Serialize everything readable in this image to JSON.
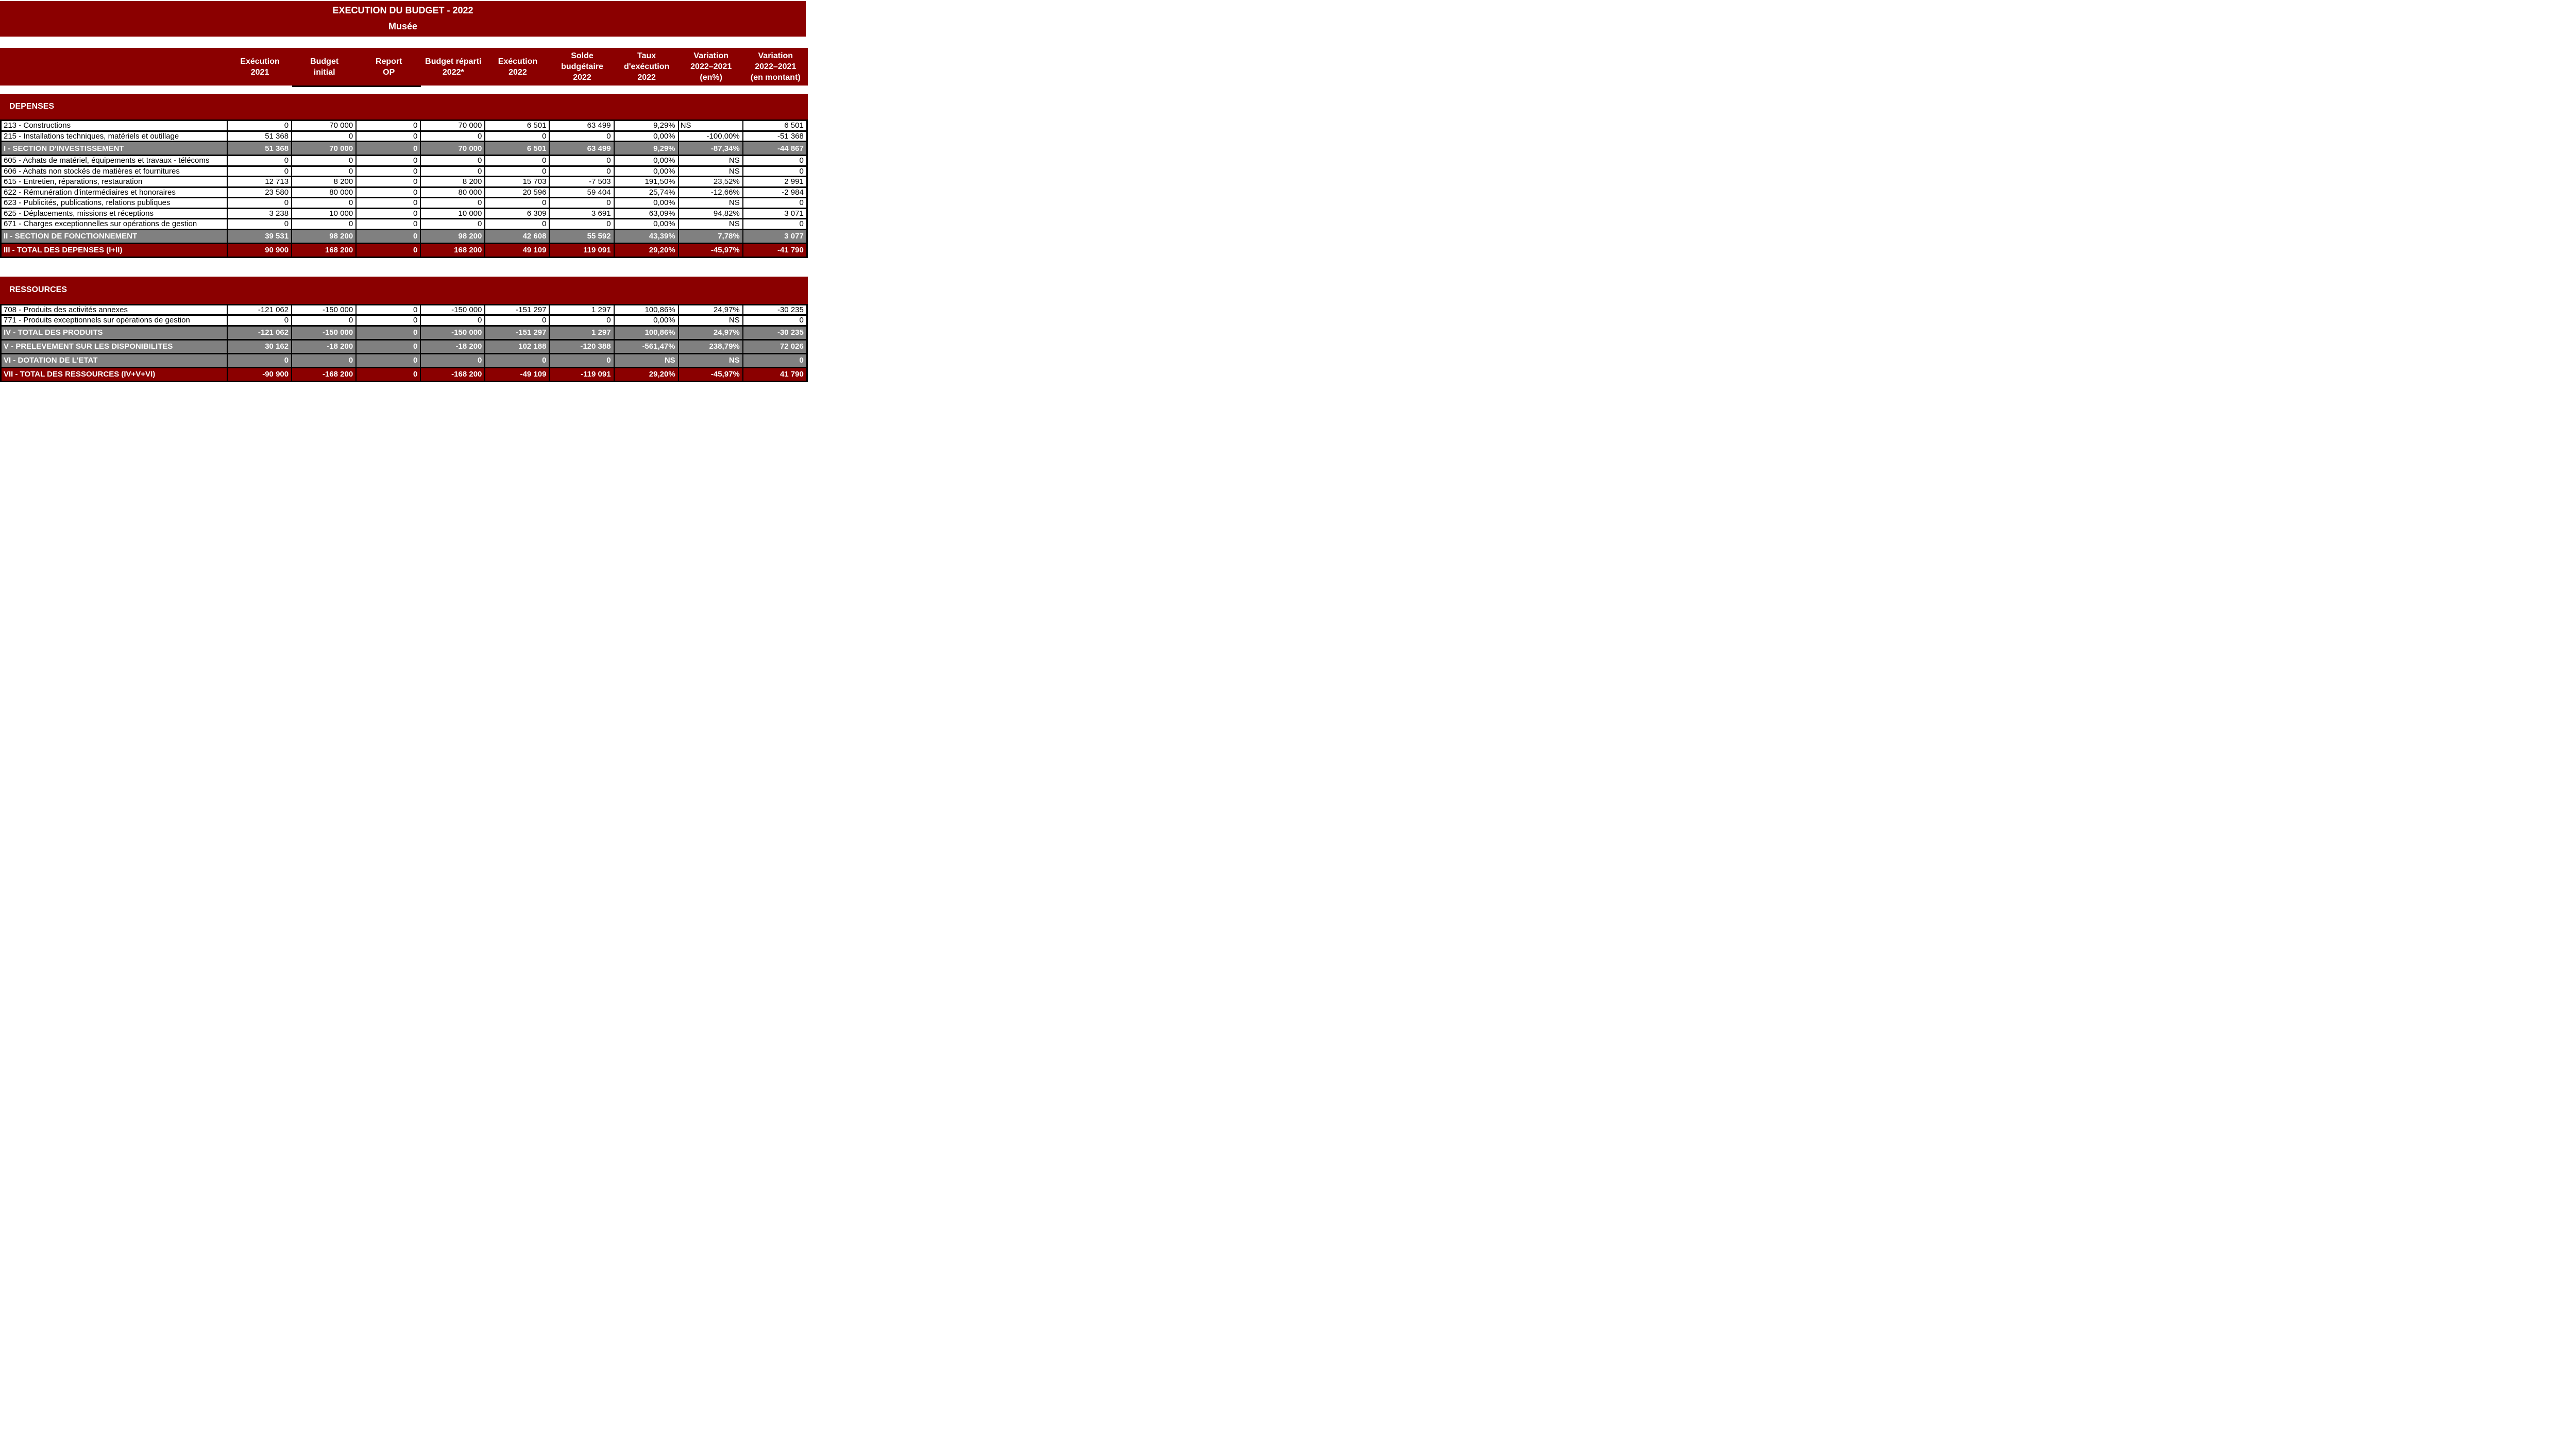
{
  "title": {
    "line1": "EXECUTION DU BUDGET - 2022",
    "line2": "Musée"
  },
  "colors": {
    "brand_dark_red": "#8b0000",
    "subtotal_gray": "#808080",
    "grid_black": "#000000",
    "text_on_dark": "#ffffff"
  },
  "columns": [
    {
      "id": "execution-2021",
      "lines": [
        "Exécution",
        "2021"
      ],
      "underline": false
    },
    {
      "id": "budget-initial",
      "lines": [
        "Budget",
        "initial"
      ],
      "underline": true
    },
    {
      "id": "report-op",
      "lines": [
        "Report",
        "OP"
      ],
      "underline": true
    },
    {
      "id": "budget-reparti-2022",
      "lines": [
        "Budget réparti",
        "2022*"
      ],
      "underline": false
    },
    {
      "id": "execution-2022",
      "lines": [
        "Exécution",
        "2022"
      ],
      "underline": false
    },
    {
      "id": "solde-budgetaire-2022",
      "lines": [
        "Solde",
        "budgétaire",
        "2022"
      ],
      "underline": false
    },
    {
      "id": "taux-execution-2022",
      "lines": [
        "Taux",
        "d'exécution",
        "2022"
      ],
      "underline": false
    },
    {
      "id": "variation-2022-2021-pct",
      "lines": [
        "Variation",
        "2022–2021",
        "(en%)"
      ],
      "underline": false
    },
    {
      "id": "variation-2022-2021-montant",
      "lines": [
        "Variation",
        "2022–2021",
        "(en montant)"
      ],
      "underline": false
    }
  ],
  "sections": [
    {
      "header": "DEPENSES",
      "rows": [
        {
          "label": "213 - Constructions",
          "type": "normal",
          "values": [
            "0",
            "70 000",
            "0",
            "70 000",
            "6 501",
            "63 499",
            "9,29%",
            "NS",
            "6 501"
          ],
          "align_left": [
            7
          ]
        },
        {
          "label": "215 - Installations techniques, matériels et outillage",
          "type": "normal",
          "values": [
            "51 368",
            "0",
            "0",
            "0",
            "0",
            "0",
            "0,00%",
            "-100,00%",
            "-51 368"
          ]
        },
        {
          "label": "I - SECTION D'INVESTISSEMENT",
          "type": "subtotal",
          "values": [
            "51 368",
            "70 000",
            "0",
            "70 000",
            "6 501",
            "63 499",
            "9,29%",
            "-87,34%",
            "-44 867"
          ]
        },
        {
          "label": "605 - Achats de matériel, équipements et travaux - télécoms",
          "type": "normal",
          "values": [
            "0",
            "0",
            "0",
            "0",
            "0",
            "0",
            "0,00%",
            "NS",
            "0"
          ]
        },
        {
          "label": "606 - Achats non stockés de matières et fournitures",
          "type": "normal",
          "values": [
            "0",
            "0",
            "0",
            "0",
            "0",
            "0",
            "0,00%",
            "NS",
            "0"
          ]
        },
        {
          "label": "615 - Entretien, réparations, restauration",
          "type": "normal",
          "values": [
            "12 713",
            "8 200",
            "0",
            "8 200",
            "15 703",
            "-7 503",
            "191,50%",
            "23,52%",
            "2 991"
          ]
        },
        {
          "label": "622 - Rémunération d'intermédiaires et honoraires",
          "type": "normal",
          "values": [
            "23 580",
            "80 000",
            "0",
            "80 000",
            "20 596",
            "59 404",
            "25,74%",
            "-12,66%",
            "-2 984"
          ]
        },
        {
          "label": "623 - Publicités, publications, relations publiques",
          "type": "normal",
          "values": [
            "0",
            "0",
            "0",
            "0",
            "0",
            "0",
            "0,00%",
            "NS",
            "0"
          ]
        },
        {
          "label": "625 - Déplacements, missions et réceptions",
          "type": "normal",
          "values": [
            "3 238",
            "10 000",
            "0",
            "10 000",
            "6 309",
            "3 691",
            "63,09%",
            "94,82%",
            "3 071"
          ]
        },
        {
          "label": "671 - Charges exceptionnelles sur opérations de gestion",
          "type": "normal",
          "values": [
            "0",
            "0",
            "0",
            "0",
            "0",
            "0",
            "0,00%",
            "NS",
            "0"
          ]
        },
        {
          "label": "II - SECTION DE FONCTIONNEMENT",
          "type": "subtotal",
          "values": [
            "39 531",
            "98 200",
            "0",
            "98 200",
            "42 608",
            "55 592",
            "43,39%",
            "7,78%",
            "3 077"
          ]
        },
        {
          "label": "III - TOTAL DES DEPENSES (I+II)",
          "type": "total",
          "values": [
            "90 900",
            "168 200",
            "0",
            "168 200",
            "49 109",
            "119 091",
            "29,20%",
            "-45,97%",
            "-41 790"
          ]
        }
      ]
    },
    {
      "header": "RESSOURCES",
      "rows": [
        {
          "label": "708 - Produits des activités annexes",
          "type": "normal",
          "values": [
            "-121 062",
            "-150 000",
            "0",
            "-150 000",
            "-151 297",
            "1 297",
            "100,86%",
            "24,97%",
            "-30 235"
          ]
        },
        {
          "label": "771 - Produits exceptionnels sur opérations de gestion",
          "type": "normal",
          "values": [
            "0",
            "0",
            "0",
            "0",
            "0",
            "0",
            "0,00%",
            "NS",
            "0"
          ]
        },
        {
          "label": "IV - TOTAL DES PRODUITS",
          "type": "subtotal",
          "values": [
            "-121 062",
            "-150 000",
            "0",
            "-150 000",
            "-151 297",
            "1 297",
            "100,86%",
            "24,97%",
            "-30 235"
          ]
        },
        {
          "label": "V - PRELEVEMENT SUR LES DISPONIBILITES",
          "type": "subtotal",
          "values": [
            "30 162",
            "-18 200",
            "0",
            "-18 200",
            "102 188",
            "-120 388",
            "-561,47%",
            "238,79%",
            "72 026"
          ]
        },
        {
          "label": "VI - DOTATION DE L'ETAT",
          "type": "subtotal",
          "values": [
            "0",
            "0",
            "0",
            "0",
            "0",
            "0",
            "NS",
            "NS",
            "0"
          ]
        },
        {
          "label": "VII - TOTAL DES RESSOURCES (IV+V+VI)",
          "type": "total",
          "values": [
            "-90 900",
            "-168 200",
            "0",
            "-168 200",
            "-49 109",
            "-119 091",
            "29,20%",
            "-45,97%",
            "41 790"
          ]
        }
      ]
    }
  ]
}
